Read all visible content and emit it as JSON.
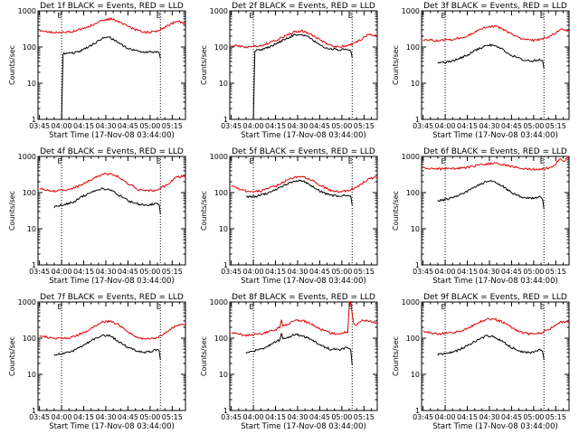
{
  "figure": {
    "xlabel": "Start Time (17-Nov-08 03:44:00)",
    "ylabel": "Counts/sec",
    "xticks": [
      "03:45",
      "04:00",
      "04:15",
      "04:30",
      "04:45",
      "05:00",
      "05:15"
    ],
    "yticks": [
      "1",
      "10",
      "100",
      "1000"
    ],
    "event_marker": "E",
    "colors": {
      "events": "#000000",
      "lld": "#e00000"
    }
  },
  "chart_data": [
    {
      "type": "line",
      "title": "Det 1f BLACK = Events, RED = LLD",
      "x_range": [
        "03:44",
        "05:24"
      ],
      "ylim": [
        1,
        1000
      ],
      "y_scale": "log",
      "dotted_lines_x": [
        "04:00",
        "05:07"
      ],
      "series": [
        {
          "name": "Events",
          "color": "#000000",
          "x": [
            "04:00",
            "04:01",
            "04:08",
            "04:15",
            "04:22",
            "04:28",
            "04:33",
            "04:38",
            "04:45",
            "04:52",
            "04:58",
            "05:04",
            "05:06",
            "05:07"
          ],
          "y": [
            1,
            65,
            68,
            85,
            125,
            175,
            180,
            135,
            90,
            75,
            72,
            75,
            72,
            48
          ]
        },
        {
          "name": "LLD",
          "color": "#e00000",
          "x": [
            "03:45",
            "03:55",
            "04:05",
            "04:15",
            "04:22",
            "04:28",
            "04:33",
            "04:38",
            "04:45",
            "04:52",
            "04:58",
            "05:05",
            "05:12",
            "05:18",
            "05:24"
          ],
          "y": [
            280,
            250,
            260,
            320,
            430,
            560,
            600,
            520,
            380,
            280,
            250,
            280,
            380,
            520,
            450
          ]
        }
      ]
    },
    {
      "type": "line",
      "title": "Det 2f BLACK = Events, RED = LLD",
      "x_range": [
        "03:44",
        "05:24"
      ],
      "ylim": [
        1,
        1000
      ],
      "y_scale": "log",
      "dotted_lines_x": [
        "04:00",
        "05:07"
      ],
      "series": [
        {
          "name": "Events",
          "color": "#000000",
          "x": [
            "04:00",
            "04:01",
            "04:08",
            "04:15",
            "04:22",
            "04:28",
            "04:33",
            "04:38",
            "04:45",
            "04:52",
            "04:58",
            "05:04",
            "05:06",
            "05:07"
          ],
          "y": [
            1,
            80,
            90,
            120,
            170,
            220,
            225,
            180,
            110,
            90,
            85,
            85,
            80,
            50
          ]
        },
        {
          "name": "LLD",
          "color": "#e00000",
          "x": [
            "03:45",
            "03:55",
            "04:05",
            "04:15",
            "04:22",
            "04:28",
            "04:33",
            "04:38",
            "04:45",
            "04:52",
            "04:58",
            "05:05",
            "05:12",
            "05:18",
            "05:24"
          ],
          "y": [
            110,
            100,
            110,
            150,
            210,
            260,
            280,
            240,
            160,
            110,
            100,
            110,
            150,
            220,
            200
          ]
        }
      ]
    },
    {
      "type": "line",
      "title": "Det 3f BLACK = Events, RED = LLD",
      "x_range": [
        "03:44",
        "05:24"
      ],
      "ylim": [
        1,
        1000
      ],
      "y_scale": "log",
      "dotted_lines_x": [
        "04:00",
        "05:07"
      ],
      "series": [
        {
          "name": "Events",
          "color": "#000000",
          "x": [
            "03:55",
            "04:01",
            "04:08",
            "04:15",
            "04:22",
            "04:28",
            "04:33",
            "04:38",
            "04:45",
            "04:52",
            "04:58",
            "05:04",
            "05:06",
            "05:07"
          ],
          "y": [
            35,
            38,
            45,
            60,
            85,
            110,
            115,
            90,
            60,
            45,
            40,
            45,
            42,
            25
          ]
        },
        {
          "name": "LLD",
          "color": "#e00000",
          "x": [
            "03:45",
            "03:55",
            "04:05",
            "04:15",
            "04:22",
            "04:28",
            "04:33",
            "04:38",
            "04:45",
            "04:52",
            "04:58",
            "05:05",
            "05:12",
            "05:18",
            "05:24"
          ],
          "y": [
            160,
            150,
            160,
            200,
            280,
            360,
            380,
            330,
            230,
            170,
            150,
            160,
            210,
            300,
            280
          ]
        }
      ]
    },
    {
      "type": "line",
      "title": "Det 4f BLACK = Events, RED = LLD",
      "x_range": [
        "03:44",
        "05:24"
      ],
      "ylim": [
        1,
        1000
      ],
      "y_scale": "log",
      "dotted_lines_x": [
        "04:00",
        "05:07"
      ],
      "series": [
        {
          "name": "Events",
          "color": "#000000",
          "x": [
            "03:55",
            "04:01",
            "04:08",
            "04:15",
            "04:22",
            "04:28",
            "04:33",
            "04:38",
            "04:45",
            "04:52",
            "04:58",
            "05:04",
            "05:06",
            "05:07"
          ],
          "y": [
            40,
            45,
            55,
            80,
            110,
            130,
            120,
            90,
            60,
            48,
            45,
            50,
            48,
            25
          ]
        },
        {
          "name": "LLD",
          "color": "#e00000",
          "x": [
            "03:45",
            "03:55",
            "04:05",
            "04:15",
            "04:22",
            "04:28",
            "04:33",
            "04:38",
            "04:45",
            "04:52",
            "04:58",
            "05:05",
            "05:12",
            "05:18",
            "05:24"
          ],
          "y": [
            130,
            110,
            120,
            170,
            250,
            320,
            330,
            280,
            180,
            120,
            110,
            120,
            170,
            260,
            300
          ]
        }
      ]
    },
    {
      "type": "line",
      "title": "Det 5f BLACK = Events, RED = LLD",
      "x_range": [
        "03:44",
        "05:24"
      ],
      "ylim": [
        1,
        1000
      ],
      "y_scale": "log",
      "dotted_lines_x": [
        "04:00",
        "05:07"
      ],
      "series": [
        {
          "name": "Events",
          "color": "#000000",
          "x": [
            "03:55",
            "04:01",
            "04:08",
            "04:15",
            "04:22",
            "04:28",
            "04:33",
            "04:38",
            "04:45",
            "04:52",
            "04:58",
            "05:04",
            "05:06",
            "05:07"
          ],
          "y": [
            75,
            78,
            90,
            120,
            170,
            210,
            215,
            170,
            110,
            85,
            80,
            85,
            80,
            45
          ]
        },
        {
          "name": "LLD",
          "color": "#e00000",
          "x": [
            "03:45",
            "03:55",
            "04:05",
            "04:15",
            "04:22",
            "04:28",
            "04:33",
            "04:38",
            "04:45",
            "04:52",
            "04:58",
            "05:05",
            "05:12",
            "05:18",
            "05:24"
          ],
          "y": [
            150,
            110,
            110,
            150,
            210,
            270,
            280,
            240,
            160,
            115,
            105,
            115,
            160,
            240,
            260
          ]
        }
      ]
    },
    {
      "type": "line",
      "title": "Det 6f BLACK = Events, RED = LLD",
      "x_range": [
        "03:44",
        "05:24"
      ],
      "ylim": [
        1,
        1000
      ],
      "y_scale": "log",
      "dotted_lines_x": [
        "04:00",
        "05:07"
      ],
      "series": [
        {
          "name": "Events",
          "color": "#000000",
          "x": [
            "03:55",
            "04:01",
            "04:08",
            "04:15",
            "04:22",
            "04:28",
            "04:33",
            "04:38",
            "04:45",
            "04:52",
            "04:58",
            "05:04",
            "05:06",
            "05:07"
          ],
          "y": [
            60,
            65,
            80,
            110,
            160,
            200,
            205,
            160,
            100,
            75,
            70,
            75,
            70,
            35
          ]
        },
        {
          "name": "LLD",
          "color": "#e00000",
          "x": [
            "03:45",
            "03:55",
            "04:05",
            "04:15",
            "04:22",
            "04:28",
            "04:33",
            "04:38",
            "04:45",
            "04:52",
            "04:58",
            "05:05",
            "05:10",
            "05:14",
            "05:16",
            "05:18",
            "05:20",
            "05:24"
          ],
          "y": [
            470,
            450,
            460,
            500,
            560,
            620,
            640,
            600,
            520,
            460,
            440,
            450,
            480,
            550,
            700,
            900,
            700,
            1000
          ]
        }
      ]
    },
    {
      "type": "line",
      "title": "Det 7f BLACK = Events, RED = LLD",
      "x_range": [
        "03:44",
        "05:24"
      ],
      "ylim": [
        1,
        1000
      ],
      "y_scale": "log",
      "dotted_lines_x": [
        "04:00",
        "05:07"
      ],
      "series": [
        {
          "name": "Events",
          "color": "#000000",
          "x": [
            "03:55",
            "04:01",
            "04:08",
            "04:15",
            "04:22",
            "04:28",
            "04:33",
            "04:38",
            "04:45",
            "04:52",
            "04:58",
            "05:04",
            "05:06",
            "05:07"
          ],
          "y": [
            35,
            38,
            45,
            65,
            95,
            120,
            115,
            85,
            55,
            42,
            40,
            48,
            45,
            25
          ]
        },
        {
          "name": "LLD",
          "color": "#e00000",
          "x": [
            "03:45",
            "03:55",
            "04:05",
            "04:15",
            "04:22",
            "04:28",
            "04:33",
            "04:38",
            "04:45",
            "04:52",
            "04:58",
            "05:05",
            "05:12",
            "05:18",
            "05:24"
          ],
          "y": [
            120,
            95,
            100,
            140,
            210,
            280,
            290,
            240,
            150,
            100,
            95,
            105,
            150,
            230,
            250
          ]
        }
      ]
    },
    {
      "type": "line",
      "title": "Det 8f BLACK = Events, RED = LLD",
      "x_range": [
        "03:44",
        "05:24"
      ],
      "ylim": [
        1,
        1000
      ],
      "y_scale": "log",
      "dotted_lines_x": [
        "04:00",
        "05:07"
      ],
      "series": [
        {
          "name": "Events",
          "color": "#000000",
          "x": [
            "03:55",
            "04:01",
            "04:08",
            "04:15",
            "04:18",
            "04:19",
            "04:20",
            "04:22",
            "04:28",
            "04:33",
            "04:38",
            "04:45",
            "04:52",
            "04:58",
            "05:04",
            "05:06",
            "05:07"
          ],
          "y": [
            40,
            45,
            55,
            80,
            90,
            140,
            95,
            100,
            125,
            120,
            95,
            65,
            50,
            48,
            55,
            50,
            18
          ]
        },
        {
          "name": "LLD",
          "color": "#e00000",
          "x": [
            "03:45",
            "03:55",
            "04:05",
            "04:15",
            "04:18",
            "04:19",
            "04:20",
            "04:22",
            "04:28",
            "04:33",
            "04:38",
            "04:45",
            "04:52",
            "04:58",
            "05:04",
            "05:05",
            "05:06",
            "05:08",
            "05:10",
            "05:12",
            "05:18",
            "05:24"
          ],
          "y": [
            140,
            120,
            130,
            170,
            200,
            320,
            210,
            230,
            300,
            310,
            260,
            180,
            140,
            130,
            150,
            700,
            1000,
            250,
            220,
            300,
            300,
            260
          ]
        }
      ]
    },
    {
      "type": "line",
      "title": "Det 9f BLACK = Events, RED = LLD",
      "x_range": [
        "03:44",
        "05:24"
      ],
      "ylim": [
        1,
        1000
      ],
      "y_scale": "log",
      "dotted_lines_x": [
        "04:00",
        "05:07"
      ],
      "series": [
        {
          "name": "Events",
          "color": "#000000",
          "x": [
            "03:55",
            "04:01",
            "04:08",
            "04:15",
            "04:22",
            "04:28",
            "04:33",
            "04:38",
            "04:45",
            "04:52",
            "04:58",
            "05:04",
            "05:06",
            "05:07"
          ],
          "y": [
            35,
            38,
            45,
            62,
            90,
            115,
            110,
            85,
            55,
            42,
            40,
            48,
            45,
            25
          ]
        },
        {
          "name": "LLD",
          "color": "#e00000",
          "x": [
            "03:45",
            "03:55",
            "04:05",
            "04:15",
            "04:22",
            "04:28",
            "04:33",
            "04:38",
            "04:45",
            "04:52",
            "04:58",
            "05:05",
            "05:12",
            "05:18",
            "05:24"
          ],
          "y": [
            150,
            130,
            140,
            180,
            260,
            330,
            340,
            290,
            200,
            140,
            130,
            140,
            190,
            280,
            290
          ]
        }
      ]
    }
  ]
}
